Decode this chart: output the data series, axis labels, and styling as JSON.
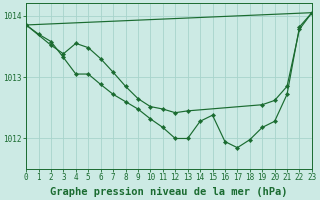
{
  "background_color": "#cceae4",
  "grid_color": "#a8d4cc",
  "line_color": "#1a6b30",
  "xlabel": "Graphe pression niveau de la mer (hPa)",
  "xlabel_fontsize": 7.5,
  "tick_fontsize": 5.5,
  "xlim": [
    0,
    23
  ],
  "ylim": [
    1011.5,
    1014.2
  ],
  "yticks": [
    1012,
    1013,
    1014
  ],
  "xticks": [
    0,
    1,
    2,
    3,
    4,
    5,
    6,
    7,
    8,
    9,
    10,
    11,
    12,
    13,
    14,
    15,
    16,
    17,
    18,
    19,
    20,
    21,
    22,
    23
  ],
  "line1_x": [
    0,
    1,
    2,
    3,
    4,
    5,
    6,
    7,
    8,
    9,
    10,
    11,
    12,
    13,
    14,
    15,
    16,
    17,
    18,
    19,
    20,
    21,
    22,
    23
  ],
  "line1_y": [
    1013.85,
    1013.7,
    1013.58,
    1013.32,
    1013.05,
    1013.05,
    1012.88,
    1012.72,
    1012.6,
    1012.48,
    1012.32,
    1012.18,
    1012.0,
    1012.0,
    1012.28,
    1012.38,
    1011.95,
    1011.85,
    1011.98,
    1012.18,
    1012.28,
    1012.72,
    1013.82,
    1014.05
  ],
  "line2_x": [
    0,
    2,
    3,
    4,
    5,
    6,
    7,
    8,
    9,
    10,
    11,
    12,
    13,
    19,
    20,
    21,
    22,
    23
  ],
  "line2_y": [
    1013.85,
    1013.52,
    1013.38,
    1013.55,
    1013.48,
    1013.3,
    1013.08,
    1012.85,
    1012.65,
    1012.52,
    1012.48,
    1012.42,
    1012.45,
    1012.55,
    1012.62,
    1012.85,
    1013.78,
    1014.05
  ],
  "line3_x": [
    0,
    23
  ],
  "line3_y": [
    1013.85,
    1014.05
  ]
}
